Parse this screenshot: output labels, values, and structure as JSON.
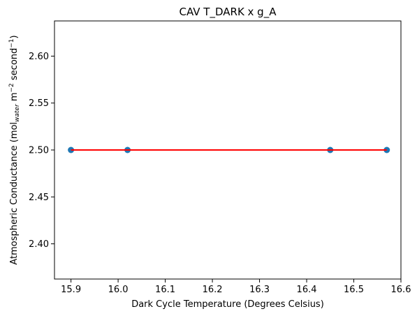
{
  "chart_data": {
    "type": "scatter",
    "title": "CAV T_DARK x g_A",
    "xlabel": "Dark Cycle Temperature (Degrees Celsius)",
    "ylabel": {
      "prefix": "Atmospheric Conductance (mol",
      "subscript": "water",
      "middle": " m",
      "sup1": "−2",
      "middle2": " second",
      "sup2": "−1",
      "suffix": ")"
    },
    "xlim": [
      15.865,
      16.6
    ],
    "ylim": [
      2.3625,
      2.6375
    ],
    "xticks": [
      15.9,
      16.0,
      16.1,
      16.2,
      16.3,
      16.4,
      16.5,
      16.6
    ],
    "xtick_labels": [
      "15.9",
      "16.0",
      "16.1",
      "16.2",
      "16.3",
      "16.4",
      "16.5",
      "16.6"
    ],
    "yticks": [
      2.4,
      2.45,
      2.5,
      2.55,
      2.6
    ],
    "ytick_labels": [
      "2.40",
      "2.45",
      "2.50",
      "2.55",
      "2.60"
    ],
    "grid": false,
    "series": [
      {
        "kind": "scatter",
        "color": "#1f77b4",
        "x": [
          15.9,
          16.02,
          16.45,
          16.57
        ],
        "y": [
          2.5,
          2.5,
          2.5,
          2.5
        ]
      },
      {
        "kind": "line",
        "color": "#ff0000",
        "x": [
          15.9,
          16.57
        ],
        "y": [
          2.5,
          2.5
        ]
      }
    ]
  }
}
